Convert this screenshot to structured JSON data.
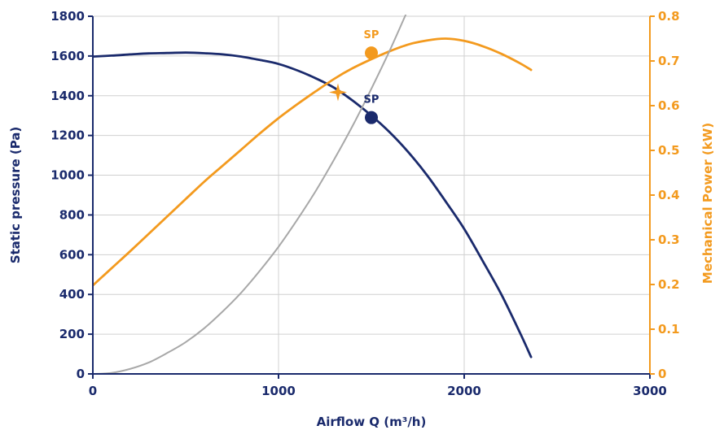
{
  "chart_data": {
    "type": "line",
    "xlabel": "Airflow Q (m³/h)",
    "ylabel": "Static pressure (Pa)",
    "y2label": "Mechanical Power (kW)",
    "xlim": [
      0,
      3000
    ],
    "ylim": [
      0,
      1800
    ],
    "y2lim": [
      0,
      0.8
    ],
    "x_ticks": [
      "0",
      "1000",
      "2000",
      "3000"
    ],
    "y_ticks": [
      "0",
      "200",
      "400",
      "600",
      "800",
      "1000",
      "1200",
      "1400",
      "1600",
      "1800"
    ],
    "y2_ticks": [
      "0",
      "0.1",
      "0.2",
      "0.3",
      "0.4",
      "0.5",
      "0.6",
      "0.7",
      "0.8"
    ],
    "grid": true,
    "colors": {
      "pressure": "#1a2a6c",
      "power": "#f39a1e",
      "system": "#a8a8a8",
      "grid": "#d0d0d0"
    },
    "series": [
      {
        "key": "pressure",
        "axis": "left",
        "x": [
          0,
          100,
          200,
          300,
          400,
          500,
          600,
          700,
          800,
          900,
          1000,
          1100,
          1200,
          1300,
          1400,
          1500,
          1600,
          1700,
          1800,
          1900,
          2000,
          2100,
          2200,
          2300,
          2360
        ],
        "y": [
          1597,
          1602,
          1608,
          1613,
          1615,
          1617,
          1614,
          1608,
          1597,
          1580,
          1560,
          1528,
          1488,
          1440,
          1375,
          1300,
          1215,
          1115,
          1000,
          868,
          730,
          568,
          400,
          208,
          85
        ]
      },
      {
        "key": "power",
        "axis": "right",
        "x": [
          0,
          100,
          200,
          300,
          400,
          500,
          600,
          700,
          800,
          900,
          1000,
          1100,
          1200,
          1300,
          1400,
          1500,
          1600,
          1700,
          1800,
          1900,
          2000,
          2100,
          2200,
          2300,
          2360
        ],
        "y": [
          0.198,
          0.236,
          0.274,
          0.313,
          0.352,
          0.391,
          0.43,
          0.466,
          0.502,
          0.538,
          0.572,
          0.603,
          0.632,
          0.66,
          0.684,
          0.704,
          0.722,
          0.737,
          0.746,
          0.75,
          0.745,
          0.733,
          0.716,
          0.695,
          0.68
        ]
      },
      {
        "key": "system",
        "axis": "left",
        "x": [
          0,
          100,
          200,
          300,
          400,
          500,
          600,
          700,
          800,
          900,
          1000,
          1100,
          1200,
          1300,
          1400,
          1500,
          1600,
          1700,
          1780
        ],
        "y": [
          0,
          5,
          25,
          57,
          105,
          160,
          230,
          315,
          410,
          520,
          640,
          775,
          920,
          1080,
          1250,
          1435,
          1630,
          1840,
          2010
        ]
      }
    ],
    "markers": [
      {
        "label": "SP",
        "x": 1500,
        "y": 1290,
        "axis": "left",
        "shape": "circle",
        "color": "#1a2a6c"
      },
      {
        "label": "SP",
        "x": 1500,
        "y": 0.718,
        "axis": "right",
        "shape": "circle",
        "color": "#f39a1e"
      },
      {
        "label": "",
        "x": 1320,
        "y": 0.63,
        "axis": "right",
        "shape": "star",
        "color": "#f39a1e"
      }
    ]
  }
}
